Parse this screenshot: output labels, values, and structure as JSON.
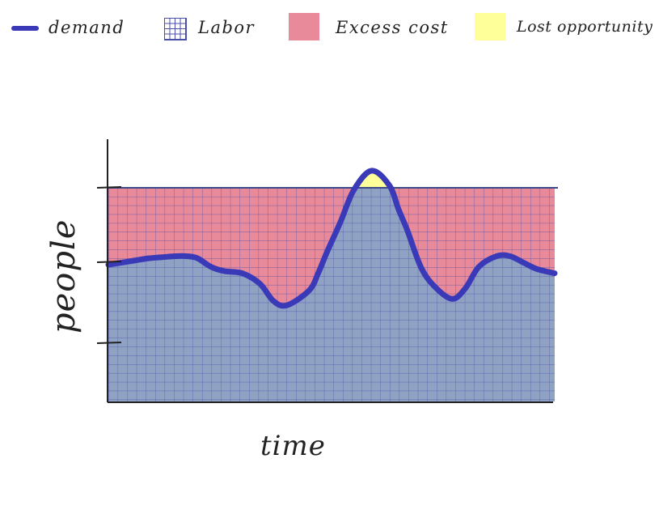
{
  "legend": {
    "items": [
      {
        "label": "demand",
        "kind": "line",
        "color": "#3a3ab8"
      },
      {
        "label": "Labor",
        "kind": "grid",
        "color": "#4a4fa8"
      },
      {
        "label": "Excess cost",
        "kind": "box",
        "color": "#e98a9b"
      },
      {
        "label": "Lost opportunity",
        "kind": "box",
        "color": "#ffff99"
      }
    ]
  },
  "chart_data": {
    "type": "area",
    "title": "",
    "xlabel": "time",
    "ylabel": "people",
    "x": [
      0,
      3,
      6,
      9,
      12,
      15,
      17.5,
      20,
      23,
      26,
      30,
      34,
      37,
      40,
      45,
      47,
      49,
      52,
      55,
      59,
      63,
      65,
      67,
      70,
      73,
      77,
      80,
      83,
      87,
      90,
      93,
      96,
      100
    ],
    "xlim": [
      0,
      100
    ],
    "ylim": [
      0,
      100
    ],
    "labor_level": 100,
    "series": [
      {
        "name": "demand",
        "values": [
          64,
          65,
          66,
          67,
          67.5,
          68,
          68,
          67,
          63,
          61,
          60,
          55,
          47,
          45,
          52,
          60,
          70,
          84,
          99,
          108,
          101,
          90,
          80,
          63,
          54,
          48,
          53,
          63,
          68,
          68,
          65,
          62,
          60
        ]
      }
    ],
    "fills": {
      "labor": "#8fa2c4",
      "excess_cost": "#e98a9b",
      "lost_opportunity": "#ffff99",
      "demand_line": "#3a3ab8",
      "grid_line": "#4a4fa8"
    },
    "y_ticks": 3,
    "grid": true
  }
}
